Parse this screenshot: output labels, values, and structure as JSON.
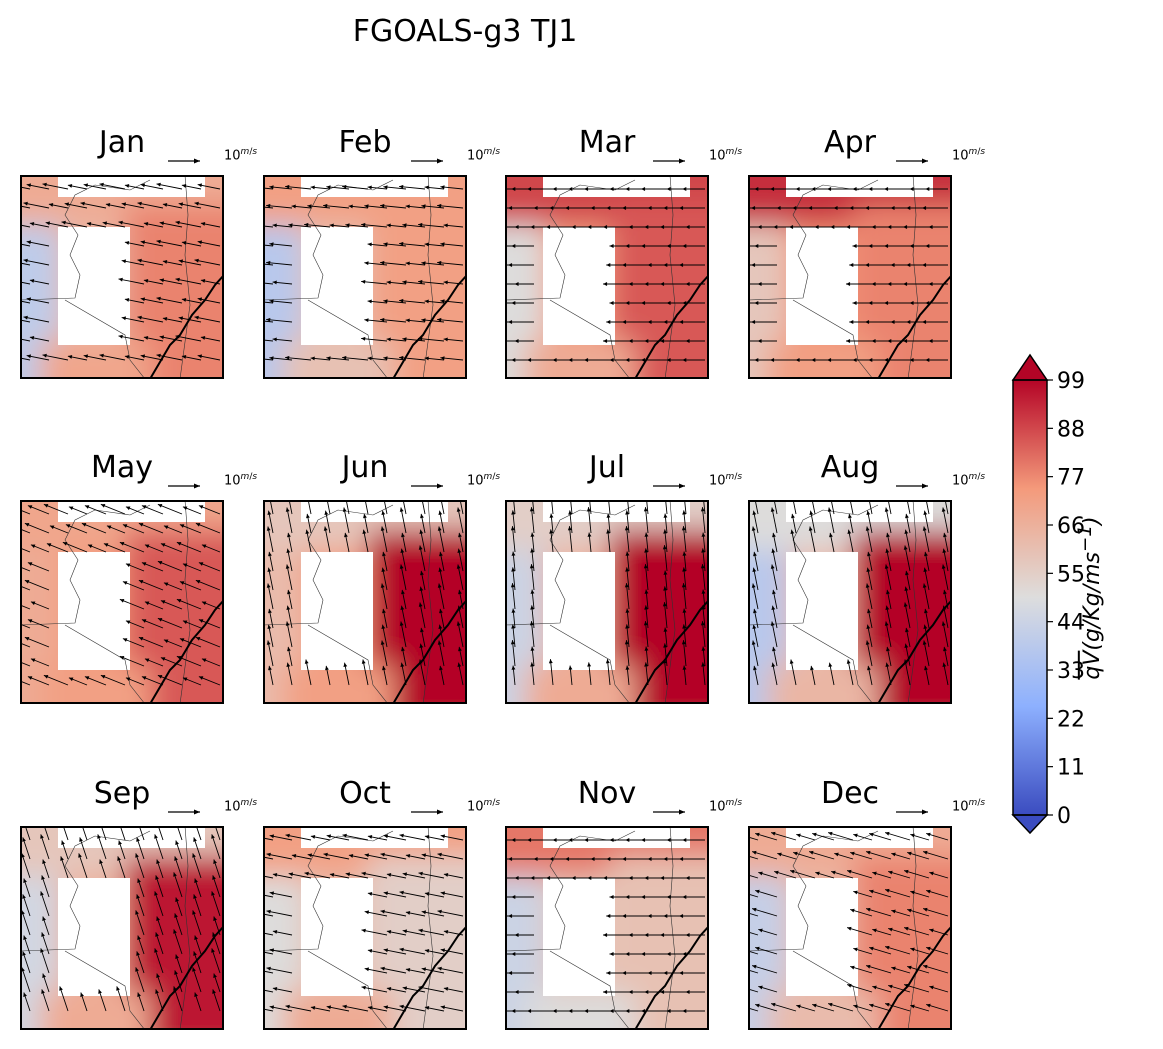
{
  "chart_data": {
    "type": "heatmap",
    "title": "FGOALS-g3 TJ1",
    "months": [
      "Jan",
      "Feb",
      "Mar",
      "Apr",
      "May",
      "Jun",
      "Jul",
      "Aug",
      "Sep",
      "Oct",
      "Nov",
      "Dec"
    ],
    "quiver_key": {
      "value": "10",
      "unit_num": "m",
      "unit_den": "s"
    },
    "colorbar": {
      "label_q": "qV",
      "label_units": "(g/Kg/ms",
      "label_exp": "−1",
      "label_close": ")",
      "ticks": [
        0,
        11,
        22,
        33,
        44,
        55,
        66,
        77,
        88,
        99
      ],
      "range": [
        0,
        99
      ],
      "colormap": "coolwarm",
      "extend": "both"
    },
    "approx_field_values": [
      {
        "month": "Jan",
        "west": 40,
        "north": 68,
        "east": 78,
        "south": 70
      },
      {
        "month": "Feb",
        "west": 38,
        "north": 72,
        "east": 72,
        "south": 60
      },
      {
        "month": "Mar",
        "west": 50,
        "north": 88,
        "east": 85,
        "south": 68
      },
      {
        "month": "Apr",
        "west": 58,
        "north": 92,
        "east": 78,
        "south": 72
      },
      {
        "month": "May",
        "west": 68,
        "north": 70,
        "east": 85,
        "south": 72
      },
      {
        "month": "Jun",
        "west": 62,
        "north": 58,
        "east": 100,
        "south": 72
      },
      {
        "month": "Jul",
        "west": 44,
        "north": 55,
        "east": 100,
        "south": 68
      },
      {
        "month": "Aug",
        "west": 38,
        "north": 50,
        "east": 100,
        "south": 64
      },
      {
        "month": "Sep",
        "west": 46,
        "north": 58,
        "east": 96,
        "south": 68
      },
      {
        "month": "Oct",
        "west": 50,
        "north": 72,
        "east": 55,
        "south": 68
      },
      {
        "month": "Nov",
        "west": 44,
        "north": 80,
        "east": 60,
        "south": 50
      },
      {
        "month": "Dec",
        "west": 42,
        "north": 68,
        "east": 78,
        "south": 62
      }
    ],
    "flow_direction": [
      {
        "month": "Jan",
        "u": -1,
        "v": 0.2
      },
      {
        "month": "Feb",
        "u": -1,
        "v": 0.1
      },
      {
        "month": "Mar",
        "u": -1,
        "v": 0.0
      },
      {
        "month": "Apr",
        "u": -1,
        "v": 0.0
      },
      {
        "month": "May",
        "u": -1,
        "v": 0.4
      },
      {
        "month": "Jun",
        "u": -0.2,
        "v": 1
      },
      {
        "month": "Jul",
        "u": -0.1,
        "v": 1
      },
      {
        "month": "Aug",
        "u": -0.2,
        "v": 1
      },
      {
        "month": "Sep",
        "u": -0.3,
        "v": 0.9
      },
      {
        "month": "Oct",
        "u": -1,
        "v": 0.2
      },
      {
        "month": "Nov",
        "u": -1,
        "v": 0.0
      },
      {
        "month": "Dec",
        "u": -1,
        "v": 0.3
      }
    ]
  }
}
